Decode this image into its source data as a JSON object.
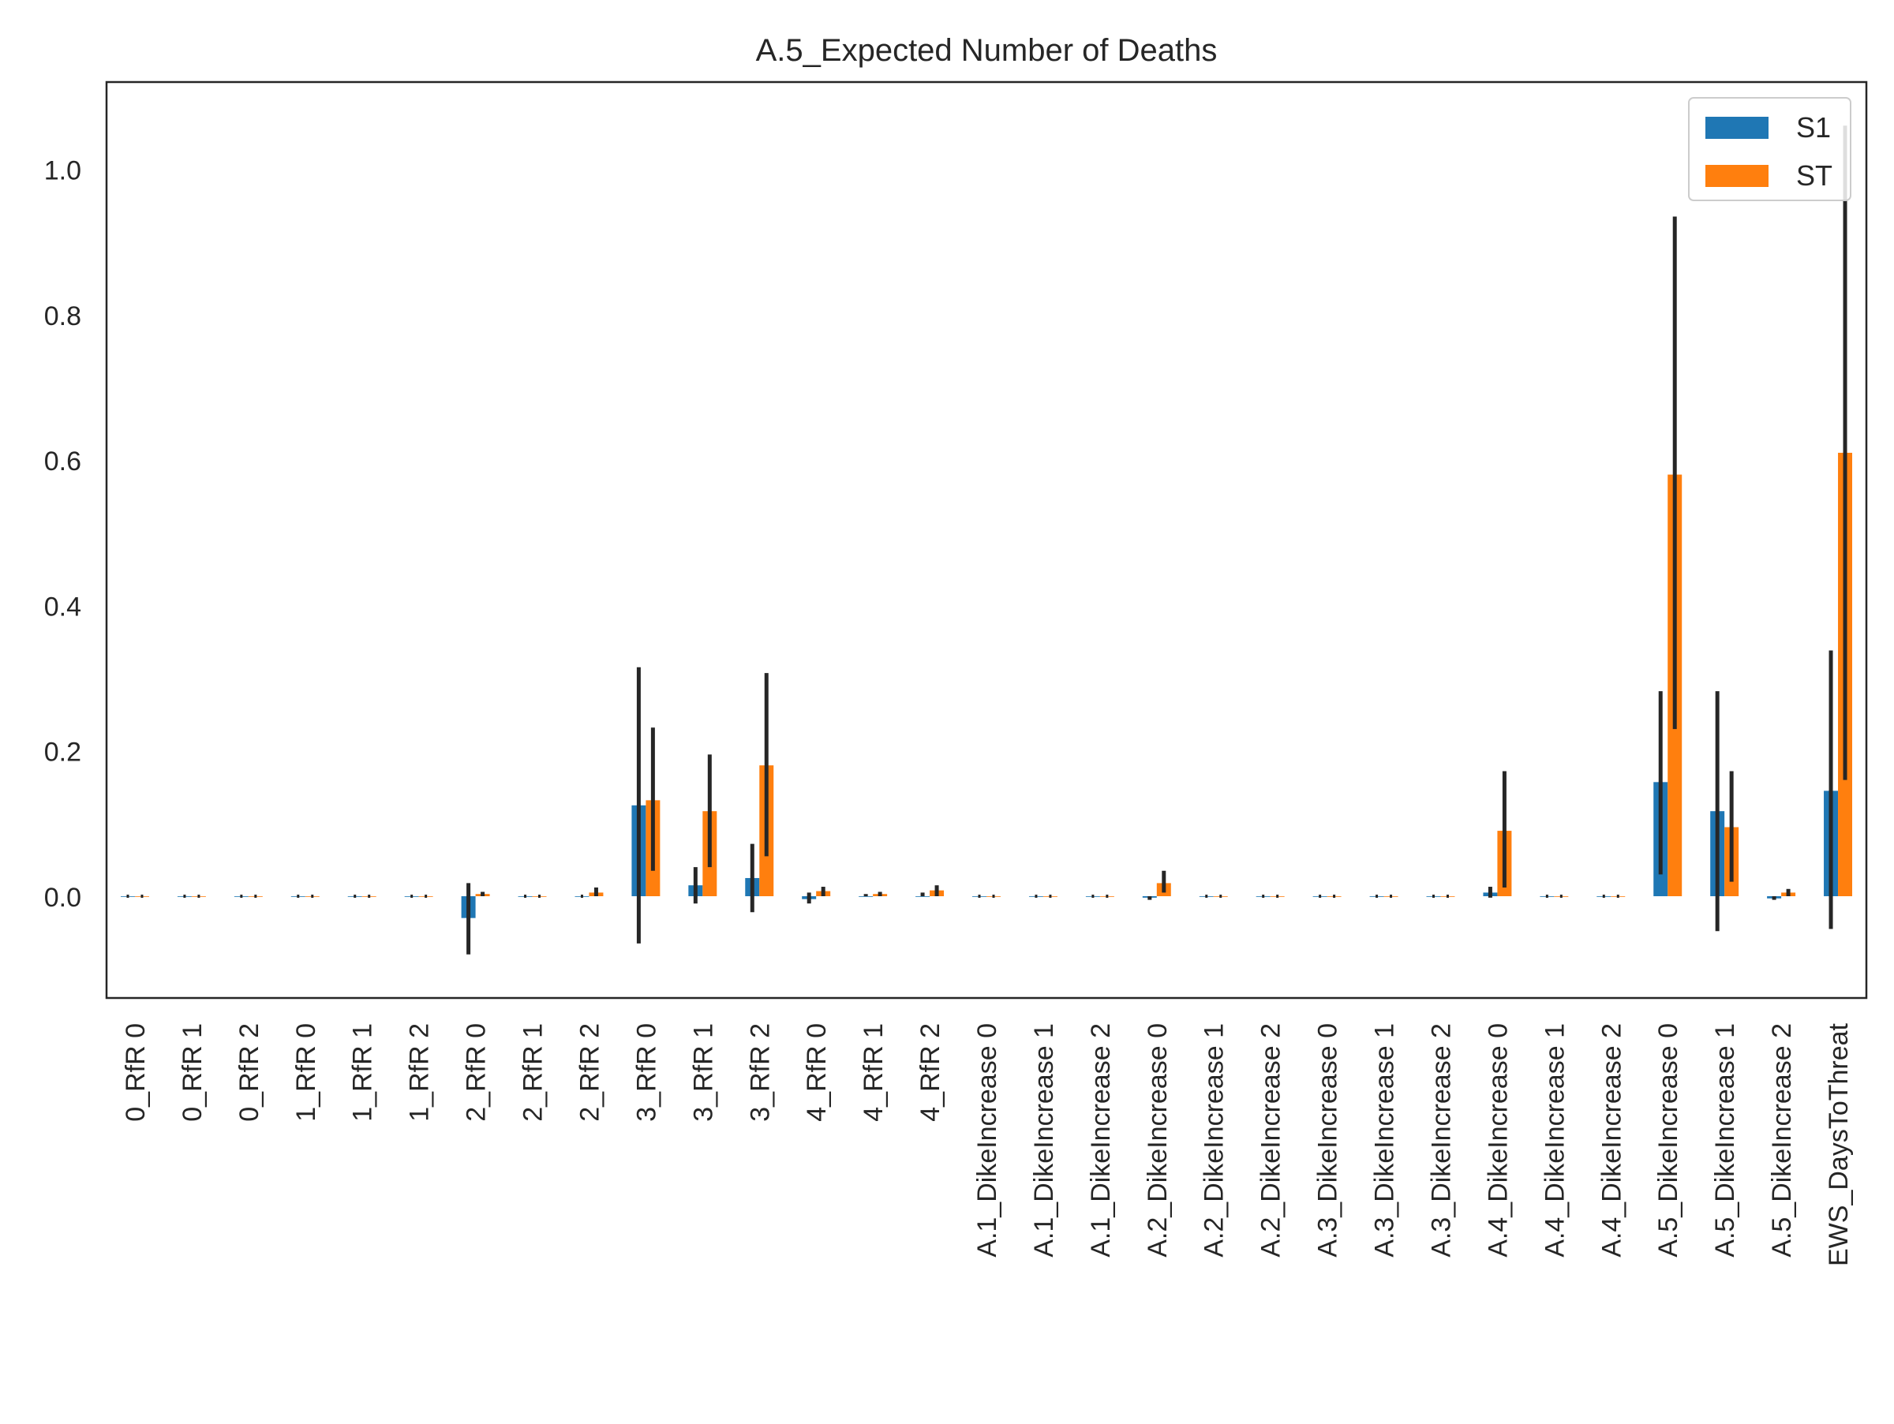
{
  "chart_data": {
    "type": "bar",
    "title": "A.5_Expected Number of Deaths",
    "xlabel": "",
    "ylabel": "",
    "ylim": [
      -0.14,
      1.12
    ],
    "yticks": [
      0.0,
      0.2,
      0.4,
      0.6,
      0.8,
      1.0
    ],
    "ytick_labels": [
      "0.0",
      "0.2",
      "0.4",
      "0.6",
      "0.8",
      "1.0"
    ],
    "grid": false,
    "legend_position": "top-right",
    "categories": [
      "0_RfR 0",
      "0_RfR 1",
      "0_RfR 2",
      "1_RfR 0",
      "1_RfR 1",
      "1_RfR 2",
      "2_RfR 0",
      "2_RfR 1",
      "2_RfR 2",
      "3_RfR 0",
      "3_RfR 1",
      "3_RfR 2",
      "4_RfR 0",
      "4_RfR 1",
      "4_RfR 2",
      "A.1_DikeIncrease 0",
      "A.1_DikeIncrease 1",
      "A.1_DikeIncrease 2",
      "A.2_DikeIncrease 0",
      "A.2_DikeIncrease 1",
      "A.2_DikeIncrease 2",
      "A.3_DikeIncrease 0",
      "A.3_DikeIncrease 1",
      "A.3_DikeIncrease 2",
      "A.4_DikeIncrease 0",
      "A.4_DikeIncrease 1",
      "A.4_DikeIncrease 2",
      "A.5_DikeIncrease 0",
      "A.5_DikeIncrease 1",
      "A.5_DikeIncrease 2",
      "EWS_DaysToThreat"
    ],
    "series": [
      {
        "name": "S1",
        "color": "#1f77b4",
        "values": [
          0.0,
          0.0,
          0.0,
          0.0,
          0.0,
          0.0,
          -0.03,
          0.0,
          0.0,
          0.125,
          0.015,
          0.025,
          -0.004,
          0.0,
          0.0,
          0.0,
          0.0,
          0.0,
          -0.002,
          0.0,
          0.0,
          0.0,
          0.0,
          0.0,
          0.005,
          0.0,
          0.0,
          0.157,
          0.117,
          -0.003,
          0.145
        ],
        "error_low": [
          0.0,
          0.0,
          0.0,
          0.0,
          0.0,
          0.0,
          -0.08,
          0.0,
          0.0,
          -0.065,
          -0.01,
          -0.022,
          -0.01,
          0.0,
          0.0,
          0.0,
          0.0,
          0.0,
          -0.005,
          0.0,
          0.0,
          0.0,
          0.0,
          0.0,
          -0.002,
          0.0,
          0.0,
          0.03,
          -0.048,
          -0.005,
          -0.045
        ],
        "error_high": [
          0.0,
          0.0,
          0.0,
          0.0,
          0.0,
          0.0,
          0.018,
          0.0,
          0.0,
          0.315,
          0.04,
          0.072,
          0.005,
          0.003,
          0.005,
          0.0,
          0.0,
          0.0,
          0.0,
          0.0,
          0.0,
          0.0,
          0.0,
          0.0,
          0.013,
          0.0,
          0.0,
          0.282,
          0.282,
          0.0,
          0.338
        ]
      },
      {
        "name": "ST",
        "color": "#ff7f0e",
        "values": [
          0.0,
          0.0,
          0.0,
          0.0,
          0.0,
          0.0,
          0.003,
          0.0,
          0.005,
          0.132,
          0.117,
          0.18,
          0.007,
          0.003,
          0.008,
          0.0,
          0.0,
          0.0,
          0.018,
          0.0,
          0.0,
          0.0,
          0.0,
          0.0,
          0.09,
          0.0,
          0.0,
          0.58,
          0.095,
          0.005,
          0.61
        ],
        "error_low": [
          0.0,
          0.0,
          0.0,
          0.0,
          0.0,
          0.0,
          0.0,
          0.0,
          0.0,
          0.035,
          0.04,
          0.055,
          0.0,
          0.0,
          0.0,
          0.0,
          0.0,
          0.0,
          0.005,
          0.0,
          0.0,
          0.0,
          0.0,
          0.0,
          0.012,
          0.0,
          0.0,
          0.23,
          0.02,
          0.0,
          0.16
        ],
        "error_high": [
          0.0,
          0.0,
          0.0,
          0.0,
          0.0,
          0.0,
          0.006,
          0.0,
          0.012,
          0.232,
          0.195,
          0.307,
          0.013,
          0.006,
          0.015,
          0.0,
          0.0,
          0.0,
          0.035,
          0.0,
          0.0,
          0.0,
          0.0,
          0.0,
          0.172,
          0.0,
          0.0,
          0.935,
          0.172,
          0.01,
          1.06
        ]
      }
    ]
  }
}
